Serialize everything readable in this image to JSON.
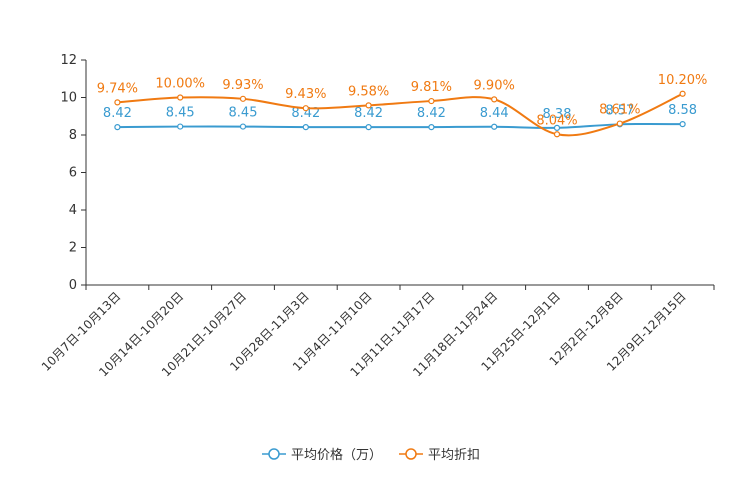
{
  "chart_data": {
    "type": "line",
    "title": "",
    "xlabel": "",
    "ylabel": "",
    "ylim": [
      0,
      12
    ],
    "yticks": [
      0,
      2,
      4,
      6,
      8,
      10,
      12
    ],
    "categories": [
      "10月7日-10月13日",
      "10月14日-10月20日",
      "10月21日-10月27日",
      "10月28日-11月3日",
      "11月4日-11月10日",
      "11月11日-11月17日",
      "11月18日-11月24日",
      "11月25日-12月1日",
      "12月2日-12月8日",
      "12月9日-12月15日"
    ],
    "series": [
      {
        "name": "平均价格（万）",
        "color": "#3a9bd0",
        "values": [
          8.42,
          8.45,
          8.45,
          8.42,
          8.42,
          8.42,
          8.44,
          8.38,
          8.57,
          8.58
        ],
        "labels": [
          "8.42",
          "8.45",
          "8.45",
          "8.42",
          "8.42",
          "8.42",
          "8.44",
          "8.38",
          "8.57",
          "8.58"
        ]
      },
      {
        "name": "平均折扣",
        "color": "#f07a12",
        "values": [
          9.74,
          10.0,
          9.93,
          9.43,
          9.58,
          9.81,
          9.9,
          8.04,
          8.61,
          10.2
        ],
        "labels": [
          "9.74%",
          "10.00%",
          "9.93%",
          "9.43%",
          "9.58%",
          "9.81%",
          "9.90%",
          "8.04%",
          "8.61%",
          "10.20%"
        ]
      }
    ],
    "legend_position": "bottom-center"
  }
}
